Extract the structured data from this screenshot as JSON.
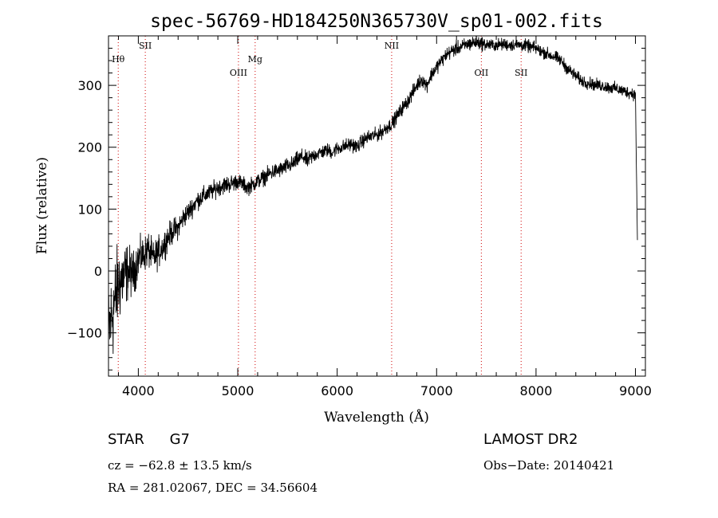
{
  "chart_data": {
    "type": "line",
    "title": "spec-56769-HD184250N365730V_sp01-002.fits",
    "xlabel": "Wavelength (Å)",
    "ylabel": "Flux (relative)",
    "xlim": [
      3700,
      9100
    ],
    "ylim": [
      -170,
      380
    ],
    "xticks": [
      4000,
      5000,
      6000,
      7000,
      8000,
      9000
    ],
    "yticks": [
      -100,
      0,
      100,
      200,
      300
    ],
    "ytick_labels": [
      "−100",
      "0",
      "100",
      "200",
      "300"
    ],
    "grid": false,
    "series": [
      {
        "x": [
          3700,
          3750,
          3800,
          3850,
          3900,
          3950,
          4000,
          4050,
          4100,
          4150,
          4200,
          4250,
          4300,
          4350,
          4400,
          4450,
          4500,
          4550,
          4600,
          4650,
          4700,
          4750,
          4800,
          4850,
          4900,
          4950,
          5000,
          5050,
          5100,
          5150,
          5200,
          5250,
          5300,
          5350,
          5400,
          5450,
          5500,
          5550,
          5600,
          5650,
          5700,
          5750,
          5800,
          5850,
          5900,
          5950,
          6000,
          6050,
          6100,
          6150,
          6200,
          6250,
          6300,
          6350,
          6400,
          6450,
          6500,
          6550,
          6600,
          6650,
          6700,
          6750,
          6800,
          6850,
          6900,
          6950,
          7000,
          7050,
          7100,
          7150,
          7200,
          7250,
          7300,
          7350,
          7400,
          7450,
          7500,
          7550,
          7600,
          7650,
          7700,
          7750,
          7800,
          7850,
          7900,
          7950,
          8000,
          8050,
          8100,
          8150,
          8200,
          8250,
          8300,
          8350,
          8400,
          8450,
          8500,
          8550,
          8600,
          8650,
          8700,
          8750,
          8800,
          8850,
          8900,
          8950,
          9000,
          9020
        ],
        "y": [
          -100,
          -60,
          -20,
          -10,
          0,
          -5,
          20,
          25,
          35,
          20,
          30,
          40,
          55,
          65,
          70,
          85,
          95,
          105,
          115,
          120,
          125,
          130,
          135,
          138,
          140,
          142,
          145,
          140,
          135,
          140,
          145,
          150,
          155,
          160,
          162,
          165,
          170,
          172,
          180,
          185,
          178,
          185,
          190,
          192,
          195,
          192,
          198,
          200,
          203,
          205,
          200,
          210,
          215,
          218,
          220,
          225,
          232,
          238,
          250,
          262,
          272,
          285,
          300,
          310,
          300,
          318,
          330,
          340,
          350,
          355,
          360,
          362,
          366,
          368,
          370,
          368,
          366,
          365,
          365,
          366,
          366,
          365,
          366,
          365,
          364,
          362,
          360,
          355,
          352,
          348,
          345,
          340,
          330,
          322,
          315,
          308,
          305,
          303,
          300,
          300,
          298,
          296,
          295,
          292,
          290,
          288,
          285,
          40
        ],
        "noise_amplitude": [
          50,
          55,
          45,
          40,
          30,
          25,
          22,
          20,
          20,
          18,
          18,
          16,
          15,
          14,
          13,
          12,
          12,
          11,
          11,
          11,
          10,
          10,
          10,
          10,
          10,
          10,
          9,
          9,
          9,
          9,
          9,
          9,
          9,
          9,
          9,
          9,
          9,
          9,
          9,
          9,
          9,
          9,
          8,
          8,
          8,
          8,
          8,
          8,
          8,
          8,
          8,
          8,
          8,
          8,
          8,
          8,
          8,
          8,
          8,
          8,
          8,
          8,
          8,
          8,
          8,
          8,
          8,
          8,
          8,
          8,
          8,
          8,
          8,
          8,
          8,
          8,
          7,
          7,
          7,
          7,
          7,
          7,
          7,
          7,
          7,
          7,
          7,
          7,
          7,
          7,
          7,
          7,
          7,
          7,
          7,
          7,
          7,
          7,
          7,
          7,
          7,
          7,
          7,
          7,
          7,
          7,
          7,
          7
        ]
      }
    ],
    "spectral_lines": [
      {
        "label": "Hθ",
        "wavelength": 3798,
        "labelPos": "upper"
      },
      {
        "label": "SII",
        "wavelength": 4070,
        "labelPos": "top"
      },
      {
        "label": "OIII",
        "wavelength": 5007,
        "labelPos": "lower"
      },
      {
        "label": "Mg",
        "wavelength": 5175,
        "labelPos": "upper"
      },
      {
        "label": "NII",
        "wavelength": 6548,
        "labelPos": "top"
      },
      {
        "label": "OII",
        "wavelength": 7450,
        "labelPos": "lower"
      },
      {
        "label": "SII",
        "wavelength": 7850,
        "labelPos": "lower"
      }
    ],
    "colors": {
      "spectrum": "#000000",
      "line_markers": "#d00000"
    }
  },
  "info": {
    "class": "STAR",
    "subclass": "G7",
    "cz": "cz = −62.8 ± 13.5 km/s",
    "radec": "RA = 281.02067, DEC =  34.56604",
    "survey": "LAMOST DR2",
    "obsdate": "Obs−Date: 20140421"
  }
}
